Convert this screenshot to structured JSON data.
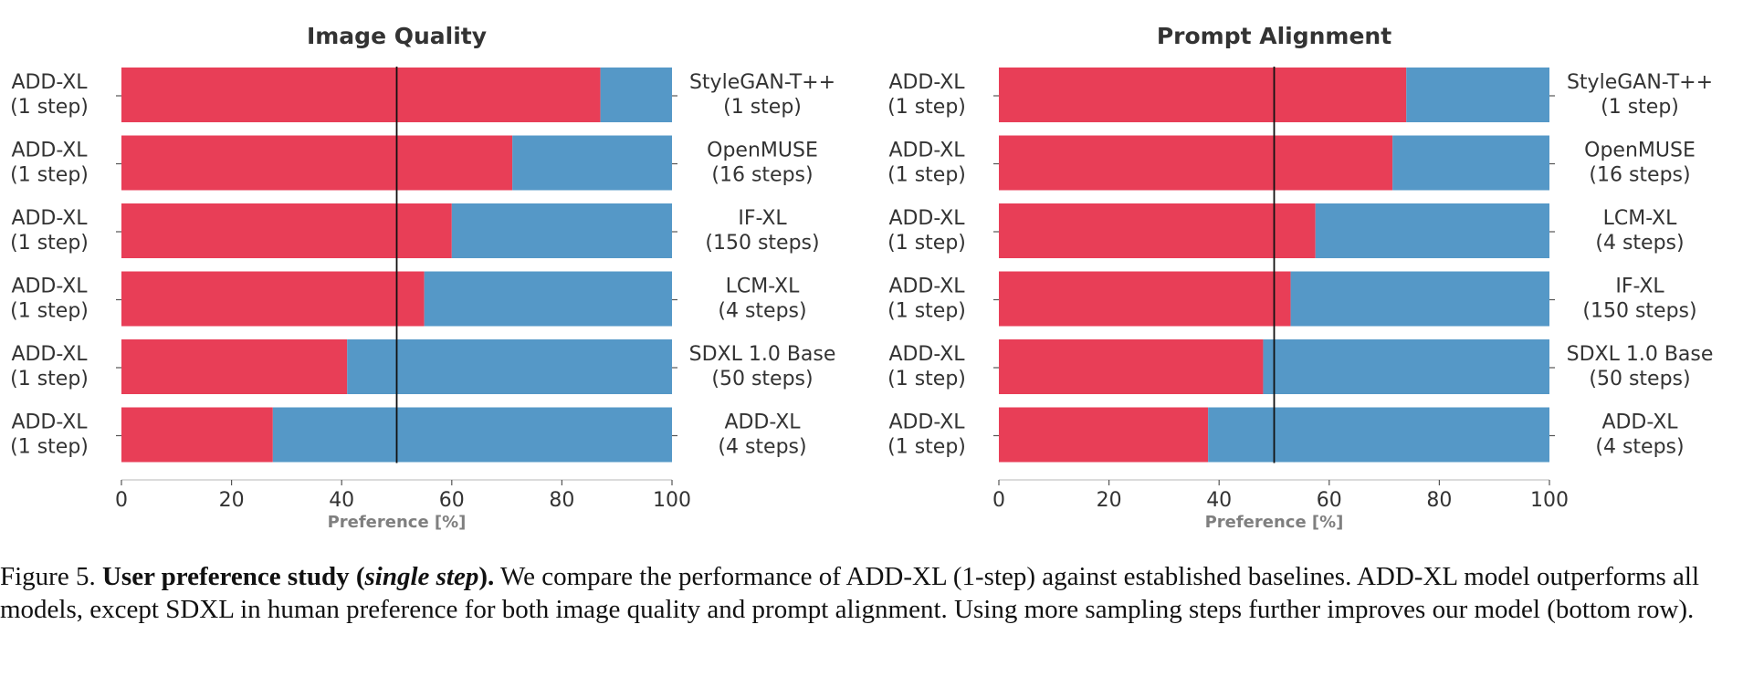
{
  "colors": {
    "add_xl": "#e83e57",
    "baseline": "#5598c7",
    "axis_text": "#333333",
    "xlabel_text": "#7f7f7f",
    "midline": "#111111"
  },
  "chart_data": [
    {
      "type": "bar",
      "orientation": "horizontal-stacked",
      "title": "Image Quality",
      "xlabel": "Preference [%]",
      "xlim": [
        0,
        100
      ],
      "xticks": [
        "0",
        "20",
        "40",
        "60",
        "80",
        "100"
      ],
      "reference_line_x": 50,
      "rows": [
        {
          "left_label": [
            "ADD-XL",
            "(1 step)"
          ],
          "right_label": [
            "StyleGAN-T++",
            "(1 step)"
          ],
          "add_xl": 87,
          "baseline": 13
        },
        {
          "left_label": [
            "ADD-XL",
            "(1 step)"
          ],
          "right_label": [
            "OpenMUSE",
            "(16 steps)"
          ],
          "add_xl": 71,
          "baseline": 29
        },
        {
          "left_label": [
            "ADD-XL",
            "(1 step)"
          ],
          "right_label": [
            "IF-XL",
            "(150 steps)"
          ],
          "add_xl": 60,
          "baseline": 40
        },
        {
          "left_label": [
            "ADD-XL",
            "(1 step)"
          ],
          "right_label": [
            "LCM-XL",
            "(4 steps)"
          ],
          "add_xl": 55,
          "baseline": 45
        },
        {
          "left_label": [
            "ADD-XL",
            "(1 step)"
          ],
          "right_label": [
            "SDXL 1.0 Base",
            "(50 steps)"
          ],
          "add_xl": 41,
          "baseline": 59
        },
        {
          "left_label": [
            "ADD-XL",
            "(1 step)"
          ],
          "right_label": [
            "ADD-XL",
            "(4 steps)"
          ],
          "add_xl": 27.5,
          "baseline": 72.5
        }
      ]
    },
    {
      "type": "bar",
      "orientation": "horizontal-stacked",
      "title": "Prompt Alignment",
      "xlabel": "Preference [%]",
      "xlim": [
        0,
        100
      ],
      "xticks": [
        "0",
        "20",
        "40",
        "60",
        "80",
        "100"
      ],
      "reference_line_x": 50,
      "rows": [
        {
          "left_label": [
            "ADD-XL",
            "(1 step)"
          ],
          "right_label": [
            "StyleGAN-T++",
            "(1 step)"
          ],
          "add_xl": 74,
          "baseline": 26
        },
        {
          "left_label": [
            "ADD-XL",
            "(1 step)"
          ],
          "right_label": [
            "OpenMUSE",
            "(16 steps)"
          ],
          "add_xl": 71.5,
          "baseline": 28.5
        },
        {
          "left_label": [
            "ADD-XL",
            "(1 step)"
          ],
          "right_label": [
            "LCM-XL",
            "(4 steps)"
          ],
          "add_xl": 57.5,
          "baseline": 42.5
        },
        {
          "left_label": [
            "ADD-XL",
            "(1 step)"
          ],
          "right_label": [
            "IF-XL",
            "(150 steps)"
          ],
          "add_xl": 53,
          "baseline": 47
        },
        {
          "left_label": [
            "ADD-XL",
            "(1 step)"
          ],
          "right_label": [
            "SDXL 1.0 Base",
            "(50 steps)"
          ],
          "add_xl": 48,
          "baseline": 52
        },
        {
          "left_label": [
            "ADD-XL",
            "(1 step)"
          ],
          "right_label": [
            "ADD-XL",
            "(4 steps)"
          ],
          "add_xl": 38,
          "baseline": 62
        }
      ]
    }
  ],
  "caption": {
    "prefix": "Figure 5. ",
    "bold_a": "User preference study (",
    "bold_italic": "single step",
    "bold_b": ").",
    "text": " We compare the performance of ADD-XL (1-step) against established baselines. ADD-XL model outperforms all models, except SDXL in human preference for both image quality and prompt alignment. Using more sampling steps further improves our model (bottom row)."
  }
}
